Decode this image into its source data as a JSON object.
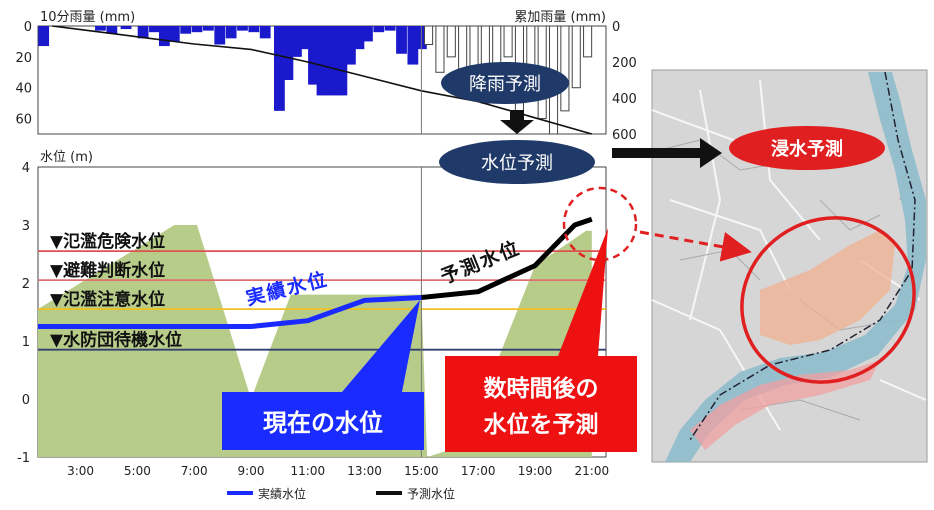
{
  "chart_data": [
    {
      "type": "bar",
      "title_left": "10分雨量 (mm)",
      "title_right": "累加雨量 (mm)",
      "left_axis": {
        "ylim": [
          0,
          70
        ],
        "ticks": [
          "0",
          "20",
          "40",
          "60"
        ],
        "tick_values": [
          0,
          20,
          40,
          60
        ],
        "inverted": true
      },
      "right_axis": {
        "ylim": [
          0,
          600
        ],
        "ticks": [
          "0",
          "200",
          "400",
          "600"
        ],
        "tick_values": [
          0,
          200,
          400,
          600
        ],
        "inverted": true
      },
      "observed_rain_10min": [
        [
          1.7,
          13
        ],
        [
          3.7,
          3
        ],
        [
          4.1,
          5
        ],
        [
          4.6,
          2
        ],
        [
          5.2,
          8
        ],
        [
          5.6,
          4
        ],
        [
          5.95,
          13
        ],
        [
          6.3,
          10
        ],
        [
          6.7,
          5
        ],
        [
          7.1,
          4
        ],
        [
          7.5,
          3
        ],
        [
          7.9,
          12
        ],
        [
          8.3,
          8
        ],
        [
          8.7,
          3
        ],
        [
          9.1,
          4
        ],
        [
          9.5,
          8
        ],
        [
          10.0,
          55
        ],
        [
          10.3,
          35
        ],
        [
          10.6,
          20
        ],
        [
          10.9,
          15
        ],
        [
          11.2,
          38
        ],
        [
          11.5,
          45
        ],
        [
          11.85,
          45
        ],
        [
          12.2,
          45
        ],
        [
          12.5,
          25
        ],
        [
          12.8,
          15
        ],
        [
          13.1,
          10
        ],
        [
          13.5,
          4
        ],
        [
          13.9,
          3
        ],
        [
          14.3,
          18
        ],
        [
          14.7,
          25
        ],
        [
          15.0,
          15
        ]
      ],
      "forecast_rain_10min": [
        [
          15.3,
          12
        ],
        [
          15.7,
          30
        ],
        [
          16.1,
          20
        ],
        [
          16.5,
          35
        ],
        [
          16.9,
          45
        ],
        [
          17.3,
          50
        ],
        [
          17.7,
          38
        ],
        [
          18.1,
          20
        ],
        [
          18.5,
          55
        ],
        [
          18.9,
          45
        ],
        [
          19.3,
          60
        ],
        [
          19.7,
          70
        ],
        [
          20.1,
          55
        ],
        [
          20.5,
          40
        ],
        [
          20.9,
          20
        ]
      ],
      "cumulative_rain": {
        "x": [
          2,
          3,
          5,
          7,
          9,
          11,
          13,
          15,
          17,
          19,
          21
        ],
        "y": [
          0,
          20,
          60,
          100,
          130,
          200,
          280,
          360,
          420,
          510,
          600
        ]
      }
    },
    {
      "type": "line",
      "ylabel": "水位 (m)",
      "ylim": [
        -1,
        4
      ],
      "y_ticks": [
        "4",
        "3",
        "2",
        "1",
        "0",
        "-1"
      ],
      "y_tick_values": [
        4,
        3,
        2,
        1,
        0,
        -1
      ],
      "x_range": [
        1.5,
        21.5
      ],
      "x_ticks": [
        "3:00",
        "5:00",
        "7:00",
        "9:00",
        "11:00",
        "13:00",
        "15:00",
        "17:00",
        "19:00",
        "21:00"
      ],
      "x_tick_values": [
        3,
        5,
        7,
        9,
        11,
        13,
        15,
        17,
        19,
        21
      ],
      "now_x": 15,
      "series": [
        {
          "name": "実績水位",
          "color": "#1a2bff",
          "x": [
            1.5,
            3,
            5,
            7,
            9,
            11,
            13,
            15
          ],
          "y": [
            1.25,
            1.25,
            1.25,
            1.25,
            1.25,
            1.35,
            1.7,
            1.75
          ]
        },
        {
          "name": "予測水位",
          "color": "#000000",
          "x": [
            15,
            17,
            19,
            20.4,
            21
          ],
          "y": [
            1.75,
            1.85,
            2.3,
            3.0,
            3.1
          ]
        }
      ],
      "thresholds": [
        {
          "name": "▼氾濫危険水位",
          "value": 2.55,
          "color": "#e05050"
        },
        {
          "name": "▼避難判断水位",
          "value": 2.05,
          "color": "#e07070"
        },
        {
          "name": "▼氾濫注意水位",
          "value": 1.55,
          "color": "#f0c020"
        },
        {
          "name": "▼水防団待機水位",
          "value": 0.85,
          "color": "#304070"
        }
      ],
      "hydrograph_area": {
        "x": [
          1.5,
          6.3,
          7.1,
          9.0,
          10.4,
          15.0,
          15.2,
          16.5,
          19.0,
          20.8,
          21.0,
          21.0,
          1.5
        ],
        "y": [
          1.55,
          3.0,
          3.0,
          0.0,
          1.8,
          1.8,
          -1.0,
          -0.8,
          2.3,
          2.9,
          2.9,
          -1.0,
          -1.0
        ],
        "color": "#b8cc8a"
      },
      "legend": [
        "実績水位",
        "予測水位"
      ]
    }
  ],
  "labels": {
    "actual_line": "実績水位",
    "forecast_line": "予測水位",
    "rain_forecast": "降雨予測",
    "level_forecast": "水位予測",
    "flood_forecast": "浸水予測",
    "current_level": "現在の水位",
    "predict_line1": "数時間後の",
    "predict_line2": "水位を予測"
  },
  "colors": {
    "observed_bar": "#1a1acc",
    "forecast_bar_outline": "#444444",
    "rain_bubble": "#1f3a68",
    "level_bubble": "#1f3a68",
    "flood_bubble": "#e02020",
    "current_box": "#1a2bff",
    "predict_box": "#ee1111",
    "map_land": "#d8d8d8",
    "map_river": "#8fbccc",
    "map_flood": "#f0a0a0"
  },
  "map": {
    "description_icon": "hazard-map"
  }
}
